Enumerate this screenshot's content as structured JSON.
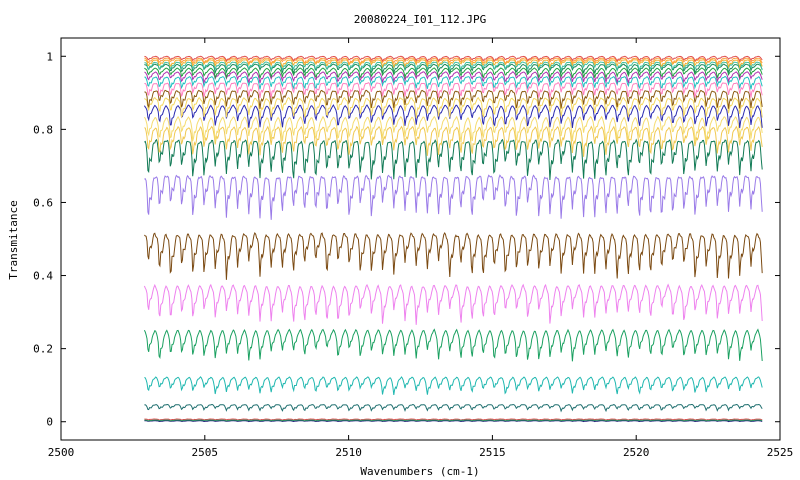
{
  "chart_data": {
    "type": "line",
    "title": "20080224_I01_112.JPG",
    "xlabel": "Wavenumbers (cm-1)",
    "ylabel": "Transmitance",
    "xlim": [
      2500,
      2525
    ],
    "ylim": [
      -0.05,
      1.05
    ],
    "x_ticks": [
      2500,
      2505,
      2510,
      2515,
      2520,
      2525
    ],
    "y_ticks": [
      0,
      0.2,
      0.4,
      0.6,
      0.8,
      1
    ],
    "grid": false,
    "legend": "none",
    "x_data_range": [
      2502.9,
      2524.4
    ],
    "line_period_cm1": 0.388,
    "series": [
      {
        "color": "#1f1f7a",
        "baseline": 0.003,
        "depth": 0.002
      },
      {
        "color": "#e05050",
        "baseline": 0.008,
        "depth": 0.003
      },
      {
        "color": "#2a9060",
        "baseline": 0.005,
        "depth": 0.002
      },
      {
        "color": "#1f6f6f",
        "baseline": 0.05,
        "depth": 0.016
      },
      {
        "color": "#20b8b0",
        "baseline": 0.13,
        "depth": 0.045
      },
      {
        "color": "#1aa060",
        "baseline": 0.265,
        "depth": 0.08
      },
      {
        "color": "#ee82ee",
        "baseline": 0.39,
        "depth": 0.095
      },
      {
        "color": "#7b4a12",
        "baseline": 0.535,
        "depth": 0.11
      },
      {
        "color": "#9a7be8",
        "baseline": 0.695,
        "depth": 0.11
      },
      {
        "color": "#117a55",
        "baseline": 0.79,
        "depth": 0.1
      },
      {
        "color": "#f0c850",
        "baseline": 0.82,
        "depth": 0.075
      },
      {
        "color": "#f5dc70",
        "baseline": 0.845,
        "depth": 0.065
      },
      {
        "color": "#2a2ab0",
        "baseline": 0.875,
        "depth": 0.055
      },
      {
        "color": "#f5d860",
        "baseline": 0.895,
        "depth": 0.05
      },
      {
        "color": "#8b5a12",
        "baseline": 0.915,
        "depth": 0.045
      },
      {
        "color": "#ff80c0",
        "baseline": 0.935,
        "depth": 0.038
      },
      {
        "color": "#20c0c0",
        "baseline": 0.95,
        "depth": 0.032
      },
      {
        "color": "#b030b0",
        "baseline": 0.962,
        "depth": 0.028
      },
      {
        "color": "#20a040",
        "baseline": 0.972,
        "depth": 0.025
      },
      {
        "color": "#1a8a5a",
        "baseline": 0.982,
        "depth": 0.022
      },
      {
        "color": "#40c0a0",
        "baseline": 0.988,
        "depth": 0.02
      },
      {
        "color": "#f0b030",
        "baseline": 0.994,
        "depth": 0.018
      },
      {
        "color": "#ffa040",
        "baseline": 0.998,
        "depth": 0.015
      },
      {
        "color": "#e05050",
        "baseline": 1.002,
        "depth": 0.012
      }
    ]
  }
}
